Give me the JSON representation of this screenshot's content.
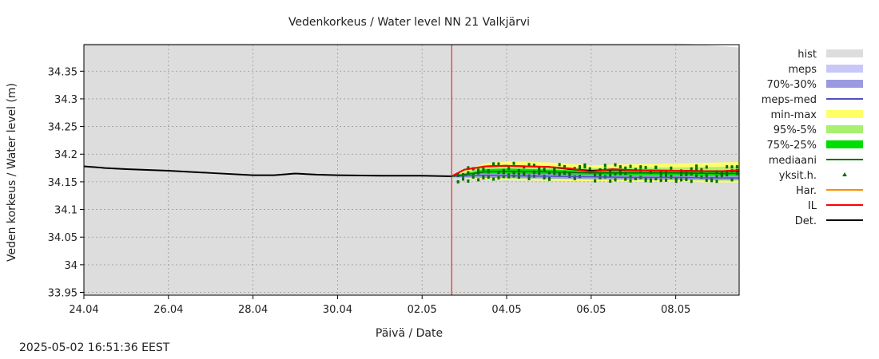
{
  "chart_data": {
    "type": "line",
    "title": "Vedenkorkeus / Water level   NN 21 Valkjärvi",
    "xlabel": "Päivä / Date",
    "ylabel": "Veden korkeus / Water level (m)",
    "x_range_days": [
      0,
      15.5
    ],
    "ylim": [
      33.945,
      34.398
    ],
    "x_ticks": [
      {
        "label": "24.04",
        "day": 0
      },
      {
        "label": "26.04",
        "day": 2
      },
      {
        "label": "28.04",
        "day": 4
      },
      {
        "label": "30.04",
        "day": 6
      },
      {
        "label": "02.05",
        "day": 8
      },
      {
        "label": "04.05",
        "day": 10
      },
      {
        "label": "06.05",
        "day": 12
      },
      {
        "label": "08.05",
        "day": 14
      }
    ],
    "y_ticks": [
      "33.95",
      "34",
      "34.05",
      "34.1",
      "34.15",
      "34.2",
      "34.25",
      "34.3",
      "34.35"
    ],
    "grid": true,
    "forecast_start_day": 8.7,
    "legend_position": "right",
    "legend": [
      {
        "label": "hist",
        "color": "#dddddd",
        "kind": "box"
      },
      {
        "label": "meps",
        "color": "#c8c8f8",
        "kind": "box"
      },
      {
        "label": "70%-30%",
        "color": "#9a9ae0",
        "kind": "box"
      },
      {
        "label": "meps-med",
        "color": "#5050c0",
        "kind": "line"
      },
      {
        "label": "min-max",
        "color": "#ffff66",
        "kind": "box"
      },
      {
        "label": "95%-5%",
        "color": "#a8f070",
        "kind": "box"
      },
      {
        "label": "75%-25%",
        "color": "#00dd00",
        "kind": "box"
      },
      {
        "label": "mediaani",
        "color": "#007000",
        "kind": "line"
      },
      {
        "label": "yksit.h.",
        "color": "#007000",
        "kind": "point"
      },
      {
        "label": "Har.",
        "color": "#ff8c00",
        "kind": "line"
      },
      {
        "label": "IL",
        "color": "#ff0000",
        "kind": "line"
      },
      {
        "label": "Det.",
        "color": "#000000",
        "kind": "line"
      }
    ],
    "series": [
      {
        "name": "Det.",
        "x": [
          0,
          0.5,
          1,
          2,
          3,
          4,
          4.5,
          5,
          5.5,
          6,
          7,
          8,
          8.7,
          9,
          9.5,
          10,
          11,
          11.5,
          12,
          12.5,
          13,
          14,
          15,
          15.5
        ],
        "values": [
          34.178,
          34.175,
          34.173,
          34.17,
          34.166,
          34.162,
          34.162,
          34.165,
          34.163,
          34.162,
          34.161,
          34.161,
          34.16,
          34.172,
          34.178,
          34.179,
          34.177,
          34.173,
          34.17,
          34.172,
          34.171,
          34.17,
          34.169,
          34.17
        ]
      },
      {
        "name": "IL",
        "x": [
          8.7,
          9,
          9.5,
          10,
          11,
          11.5,
          12,
          12.5,
          13,
          14,
          15,
          15.5
        ],
        "values": [
          34.16,
          34.172,
          34.178,
          34.179,
          34.177,
          34.174,
          34.168,
          34.173,
          34.171,
          34.17,
          34.169,
          34.171
        ]
      },
      {
        "name": "meps-med",
        "x": [
          8.7,
          9.5,
          10,
          11,
          12,
          13,
          14,
          15,
          15.5
        ],
        "values": [
          34.16,
          34.162,
          34.161,
          34.16,
          34.159,
          34.158,
          34.158,
          34.157,
          34.157
        ]
      },
      {
        "name": "mediaani",
        "x": [
          8.7,
          9.5,
          10,
          11,
          12,
          13,
          14,
          15,
          15.5
        ],
        "values": [
          34.16,
          34.168,
          34.169,
          34.168,
          34.166,
          34.166,
          34.166,
          34.165,
          34.165
        ]
      }
    ],
    "bands": [
      {
        "name": "min-max",
        "x": [
          8.7,
          9.5,
          10,
          11,
          12,
          13,
          14,
          15,
          15.5
        ],
        "lower": [
          34.158,
          34.155,
          34.153,
          34.152,
          34.151,
          34.15,
          34.15,
          34.149,
          34.149
        ],
        "upper": [
          34.162,
          34.184,
          34.187,
          34.185,
          34.18,
          34.182,
          34.183,
          34.185,
          34.186
        ]
      },
      {
        "name": "95%-5%",
        "x": [
          8.7,
          9.5,
          10,
          11,
          12,
          13,
          14,
          15,
          15.5
        ],
        "lower": [
          34.159,
          34.157,
          34.156,
          34.155,
          34.154,
          34.153,
          34.153,
          34.152,
          34.152
        ],
        "upper": [
          34.161,
          34.178,
          34.18,
          34.178,
          34.175,
          34.176,
          34.176,
          34.177,
          34.178
        ]
      },
      {
        "name": "75%-25%",
        "x": [
          8.7,
          9.5,
          10,
          11,
          12,
          13,
          14,
          15,
          15.5
        ],
        "lower": [
          34.16,
          34.162,
          34.162,
          34.161,
          34.16,
          34.16,
          34.159,
          34.159,
          34.159
        ],
        "upper": [
          34.16,
          34.173,
          34.174,
          34.172,
          34.17,
          34.17,
          34.17,
          34.17,
          34.171
        ]
      },
      {
        "name": "70%-30%",
        "x": [
          8.7,
          9.5,
          10,
          11,
          12,
          13,
          14,
          15,
          15.5
        ],
        "lower": [
          34.158,
          34.157,
          34.157,
          34.156,
          34.155,
          34.154,
          34.154,
          34.153,
          34.153
        ],
        "upper": [
          34.161,
          34.165,
          34.165,
          34.164,
          34.163,
          34.162,
          34.162,
          34.161,
          34.161
        ]
      }
    ],
    "hist_upper": {
      "x": [
        0,
        14.2,
        15.5
      ],
      "values": [
        34.4,
        34.4,
        34.393
      ]
    }
  },
  "footer": {
    "timestamp": "2025-05-02 16:51:36 EEST"
  }
}
